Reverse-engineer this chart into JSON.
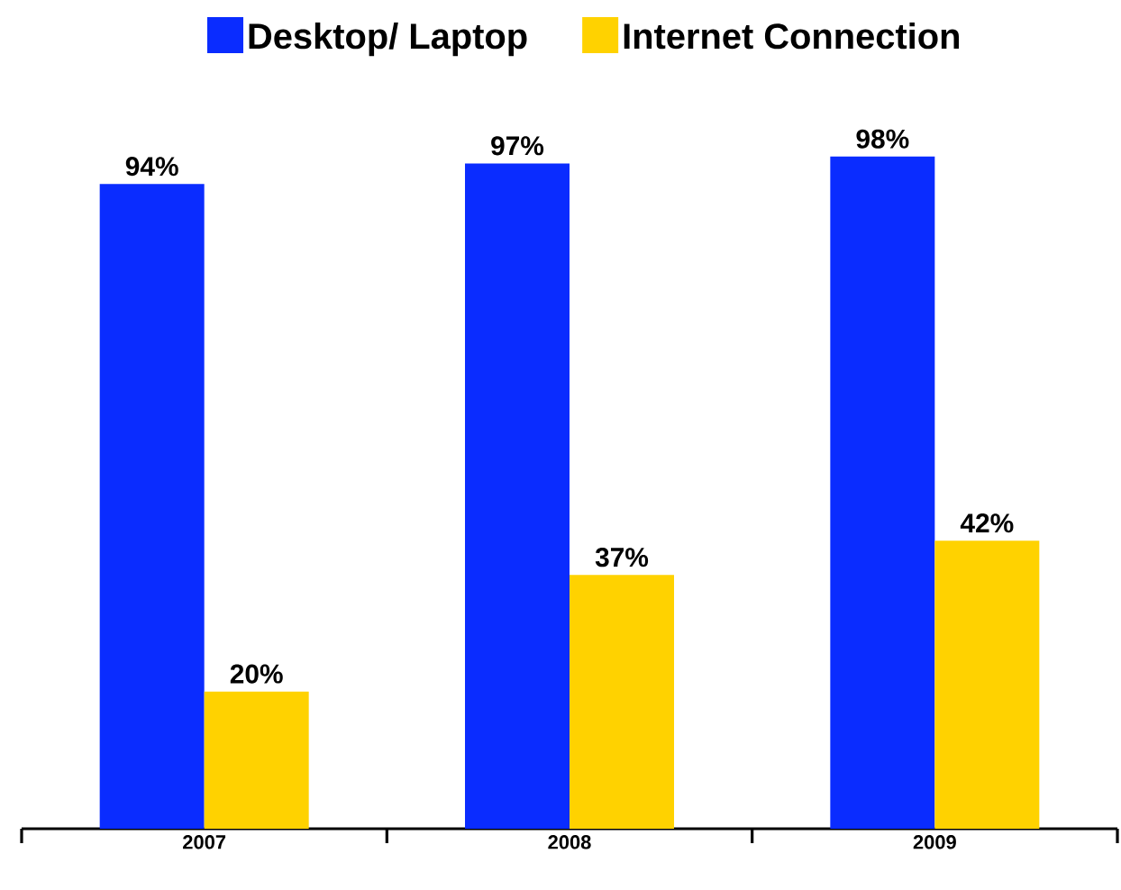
{
  "chart_data": {
    "type": "bar",
    "categories": [
      "2007",
      "2008",
      "2009"
    ],
    "series": [
      {
        "name": "Desktop/ Laptop",
        "color": "#0a2cff",
        "values": [
          94,
          97,
          98
        ],
        "value_labels": [
          "94%",
          "97%",
          "98%"
        ]
      },
      {
        "name": "Internet Connection",
        "color": "#ffd200",
        "values": [
          20,
          37,
          42
        ],
        "value_labels": [
          "20%",
          "37%",
          "42%"
        ]
      }
    ],
    "legend": "top"
  }
}
